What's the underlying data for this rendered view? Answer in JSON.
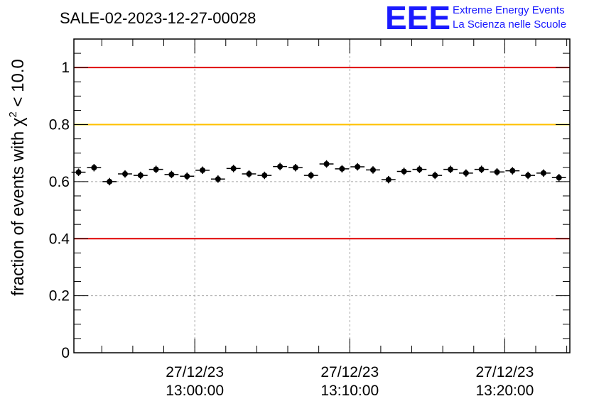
{
  "chart_data": {
    "type": "scatter",
    "title": "SALE-02-2023-12-27-00028",
    "ylabel_main": "fraction of events with χ",
    "ylabel_sup": "2",
    "ylabel_tail": " < 10.0",
    "ylim": [
      0,
      1.1
    ],
    "y_ticks": [
      0,
      0.2,
      0.4,
      0.6,
      0.8,
      1
    ],
    "y_tick_labels": [
      "0",
      "0.2",
      "0.4",
      "0.6",
      "0.8",
      "1"
    ],
    "x_range_minutes": [
      -7.8,
      24.2
    ],
    "x_ticks": [
      {
        "minutes": 0,
        "date": "27/12/23",
        "time": "13:00:00"
      },
      {
        "minutes": 10,
        "date": "27/12/23",
        "time": "13:10:00"
      },
      {
        "minutes": 20,
        "date": "27/12/23",
        "time": "13:20:00"
      }
    ],
    "grid": true,
    "reference_lines": [
      {
        "y": 1.0,
        "color": "#e00000"
      },
      {
        "y": 0.8,
        "color": "#ffc000"
      },
      {
        "y": 0.4,
        "color": "#e00000"
      }
    ],
    "series": [
      {
        "marker_color": "#000000",
        "x_minutes": [
          -7.5,
          -6.5,
          -5.5,
          -4.5,
          -3.5,
          -2.5,
          -1.5,
          -0.5,
          0.5,
          1.5,
          2.5,
          3.5,
          4.5,
          5.5,
          6.5,
          7.5,
          8.5,
          9.5,
          10.5,
          11.5,
          12.5,
          13.5,
          14.5,
          15.5,
          16.5,
          17.5,
          18.5,
          19.5,
          20.5,
          21.5,
          22.5,
          23.5
        ],
        "values": [
          0.633,
          0.649,
          0.6,
          0.627,
          0.622,
          0.643,
          0.625,
          0.619,
          0.64,
          0.609,
          0.646,
          0.627,
          0.622,
          0.653,
          0.649,
          0.622,
          0.662,
          0.645,
          0.652,
          0.641,
          0.607,
          0.636,
          0.643,
          0.622,
          0.643,
          0.63,
          0.643,
          0.634,
          0.638,
          0.622,
          0.63,
          0.614
        ],
        "errors": [
          0.013,
          0.013,
          0.013,
          0.013,
          0.013,
          0.013,
          0.013,
          0.013,
          0.013,
          0.013,
          0.013,
          0.013,
          0.013,
          0.013,
          0.013,
          0.013,
          0.013,
          0.013,
          0.013,
          0.013,
          0.013,
          0.013,
          0.013,
          0.013,
          0.013,
          0.013,
          0.013,
          0.013,
          0.013,
          0.013,
          0.013,
          0.013
        ],
        "bin_width_minutes": 1
      }
    ]
  },
  "logo": {
    "mark": "EEE",
    "line1": "Extreme Energy Events",
    "line2": "La Scienza nelle Scuole",
    "color": "#1a1aff"
  }
}
